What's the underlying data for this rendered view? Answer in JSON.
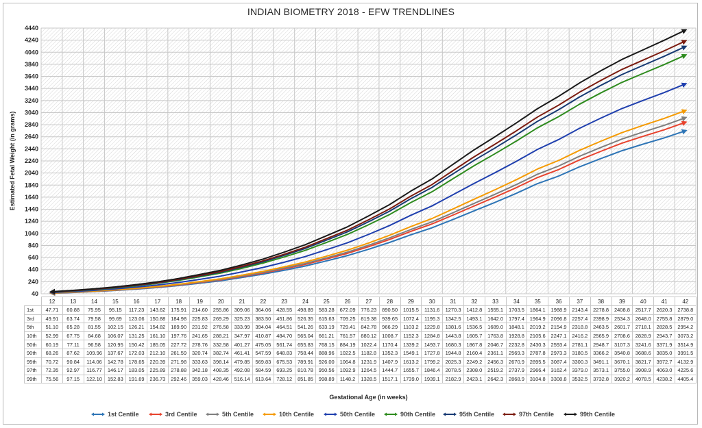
{
  "chart_data": {
    "type": "line",
    "title": "INDIAN BIOMETRY 2018 - EFW TRENDLINES",
    "xlabel": "Gestational Age (in weeks)",
    "ylabel": "Estimated Fetal Weight (in grams)",
    "ylim": [
      40,
      4440
    ],
    "yticks": [
      40,
      240,
      440,
      640,
      840,
      1040,
      1240,
      1440,
      1640,
      1840,
      2040,
      2240,
      2440,
      2640,
      2840,
      3040,
      3240,
      3440,
      3640,
      3840,
      4040,
      4240,
      4440
    ],
    "grid": true,
    "legend_position": "bottom",
    "categories": [
      "12",
      "13",
      "14",
      "15",
      "16",
      "17",
      "18",
      "19",
      "20",
      "21",
      "22",
      "23",
      "24",
      "25",
      "26",
      "27",
      "28",
      "29",
      "30",
      "31",
      "32",
      "33",
      "34",
      "35",
      "36",
      "37",
      "38",
      "39",
      "40",
      "41",
      "42"
    ],
    "series": [
      {
        "name": "1st Centile",
        "row_label": "1st",
        "color": "#2e75b6",
        "values": [
          47.71,
          60.88,
          75.95,
          95.15,
          117.23,
          143.62,
          175.91,
          214.6,
          255.86,
          309.06,
          364.06,
          428.55,
          498.89,
          583.28,
          672.09,
          776.23,
          890.5,
          1015.5,
          1131.6,
          1270.3,
          1412.8,
          1555.1,
          1703.5,
          1864.1,
          1988.9,
          2143.4,
          2278.8,
          2408.8,
          2517.7,
          2620.3,
          2738.8
        ]
      },
      {
        "name": "3rd Centile",
        "row_label": "3rd",
        "color": "#e8432e",
        "values": [
          49.91,
          63.74,
          79.58,
          99.69,
          123.06,
          150.88,
          184.98,
          225.83,
          269.29,
          325.23,
          383.5,
          451.86,
          526.35,
          615.63,
          709.25,
          819.38,
          939.65,
          1072.4,
          1195.3,
          1342.5,
          1493.1,
          1642.0,
          1797.4,
          1964.9,
          2096.8,
          2257.4,
          2398.9,
          2534.3,
          2648.0,
          2755.8,
          2879.0
        ]
      },
      {
        "name": "5th Centile",
        "row_label": "5th",
        "color": "#7f7f7f",
        "values": [
          51.1,
          65.28,
          81.55,
          102.15,
          126.21,
          154.82,
          189.9,
          231.92,
          276.58,
          333.99,
          394.04,
          464.51,
          541.26,
          633.19,
          729.41,
          842.78,
          966.29,
          1103.2,
          1229.8,
          1381.6,
          1536.5,
          1689.0,
          1848.1,
          2019.2,
          2154.9,
          2318.8,
          2463.5,
          2601.7,
          2718.1,
          2828.5,
          2954.2
        ]
      },
      {
        "name": "10th Centile",
        "row_label": "10th",
        "color": "#f59a00",
        "values": [
          52.99,
          67.75,
          84.68,
          106.07,
          131.25,
          161.1,
          197.76,
          241.65,
          288.21,
          347.97,
          410.87,
          484.7,
          565.04,
          661.21,
          761.57,
          880.12,
          1008.7,
          1152.3,
          1284.8,
          1443.8,
          1605.7,
          1763.8,
          1928.8,
          2105.6,
          2247.1,
          2416.2,
          2565.9,
          2708.6,
          2828.9,
          2943.7,
          3073.2
        ]
      },
      {
        "name": "50th Centile",
        "row_label": "50th",
        "color": "#1f3fae",
        "values": [
          60.19,
          77.11,
          96.58,
          120.95,
          150.42,
          185.05,
          227.72,
          278.76,
          332.58,
          401.27,
          475.05,
          561.74,
          655.83,
          768.15,
          884.19,
          1022.4,
          1170.4,
          1339.2,
          1493.7,
          1680.3,
          1867.8,
          2046.7,
          2232.8,
          2430.3,
          2593.4,
          2781.1,
          2948.7,
          3107.3,
          3241.6,
          3371.9,
          3514.9
        ]
      },
      {
        "name": "90th Centile",
        "row_label": "90th",
        "color": "#2e8b1e",
        "values": [
          68.26,
          87.62,
          109.96,
          137.67,
          172.03,
          212.1,
          261.59,
          320.74,
          382.74,
          461.41,
          547.59,
          648.83,
          758.44,
          888.96,
          1022.5,
          1182.8,
          1352.3,
          1549.1,
          1727.8,
          1944.8,
          2160.4,
          2361.1,
          2569.3,
          2787.8,
          2973.3,
          3180.5,
          3366.2,
          3540.8,
          3688.6,
          3835.0,
          3991.5
        ]
      },
      {
        "name": "95th Centile",
        "row_label": "95th",
        "color": "#173a73",
        "values": [
          70.72,
          90.84,
          114.06,
          142.78,
          178.65,
          220.39,
          271.98,
          333.63,
          398.14,
          479.85,
          569.83,
          675.53,
          789.91,
          926.0,
          1064.8,
          1231.9,
          1407.9,
          1613.2,
          1799.2,
          2025.3,
          2249.2,
          2456.3,
          2670.9,
          2895.5,
          3087.4,
          3300.3,
          3491.1,
          3670.1,
          3821.7,
          3972.7,
          4132.9
        ]
      },
      {
        "name": "97th Centile",
        "row_label": "97th",
        "color": "#7b1c10",
        "values": [
          72.35,
          92.97,
          116.77,
          146.17,
          183.05,
          225.89,
          278.88,
          342.18,
          408.35,
          492.08,
          584.59,
          693.25,
          810.78,
          950.56,
          1092.9,
          1264.5,
          1444.7,
          1655.7,
          1846.4,
          2078.5,
          2308.0,
          2519.2,
          2737.9,
          2966.4,
          3162.4,
          3379.0,
          3573.1,
          3755.0,
          3908.9,
          4063.0,
          4225.6
        ]
      },
      {
        "name": "99th Centile",
        "row_label": "99th",
        "color": "#1a1a1a",
        "values": [
          75.56,
          97.15,
          122.1,
          152.83,
          191.69,
          236.73,
          292.46,
          359.03,
          428.46,
          516.14,
          613.64,
          728.12,
          851.85,
          998.89,
          1148.2,
          1328.5,
          1517.1,
          1739.0,
          1939.1,
          2182.9,
          2423.1,
          2642.3,
          2868.9,
          3104.8,
          3308.8,
          3532.5,
          3732.8,
          3920.2,
          4078.5,
          4238.2,
          4405.4
        ]
      }
    ]
  }
}
